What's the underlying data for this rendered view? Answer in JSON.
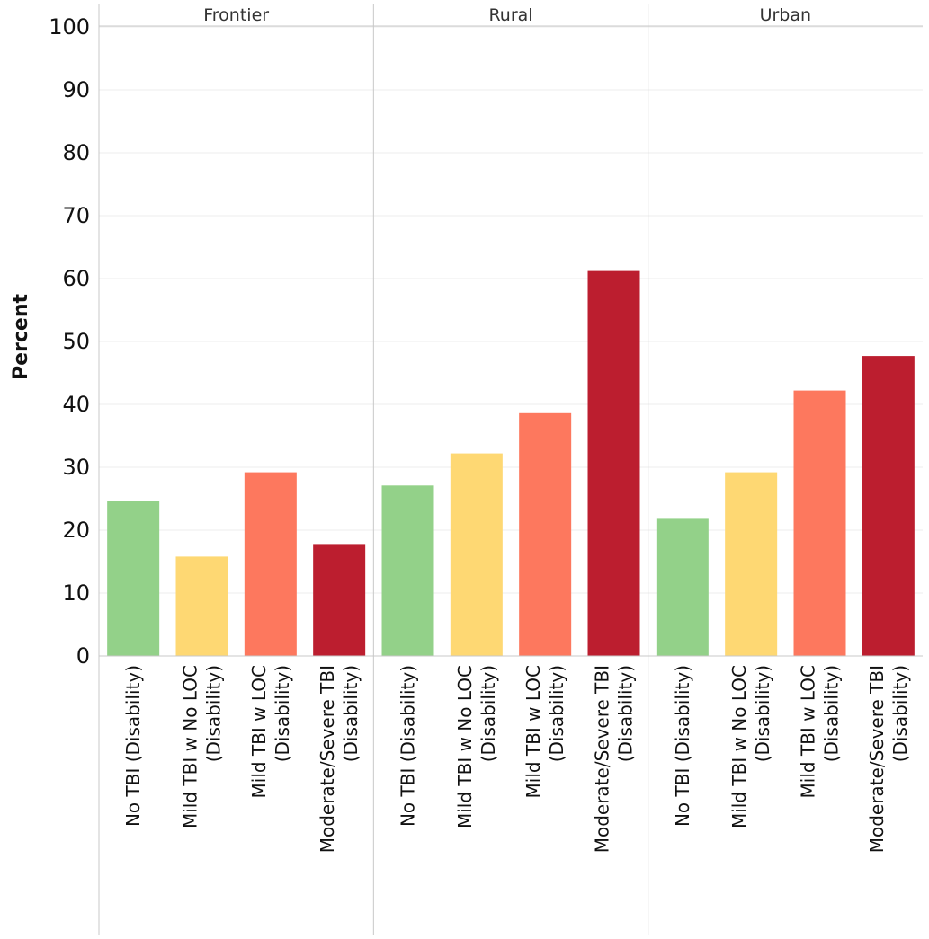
{
  "chart_data": {
    "type": "bar",
    "ylabel": "Percent",
    "ylim": [
      0,
      100
    ],
    "yticks": [
      "0",
      "10",
      "20",
      "30",
      "40",
      "50",
      "60",
      "70",
      "80",
      "90",
      "100"
    ],
    "grid": "horizontal",
    "panels": [
      "Frontier",
      "Rural",
      "Urban"
    ],
    "categories": [
      [
        "No TBI (Disability)"
      ],
      [
        "Mild TBI w No LOC",
        "(Disability)"
      ],
      [
        "Mild TBI w LOC",
        "(Disability)"
      ],
      [
        "Moderate/Severe TBI",
        "(Disability)"
      ]
    ],
    "colors": [
      "#93d189",
      "#fed873",
      "#fd785e",
      "#bc1e2f"
    ],
    "values": [
      [
        24.7,
        15.8,
        29.2,
        17.8
      ],
      [
        27.1,
        32.2,
        38.6,
        61.2
      ],
      [
        21.8,
        29.2,
        42.2,
        47.7
      ]
    ]
  }
}
